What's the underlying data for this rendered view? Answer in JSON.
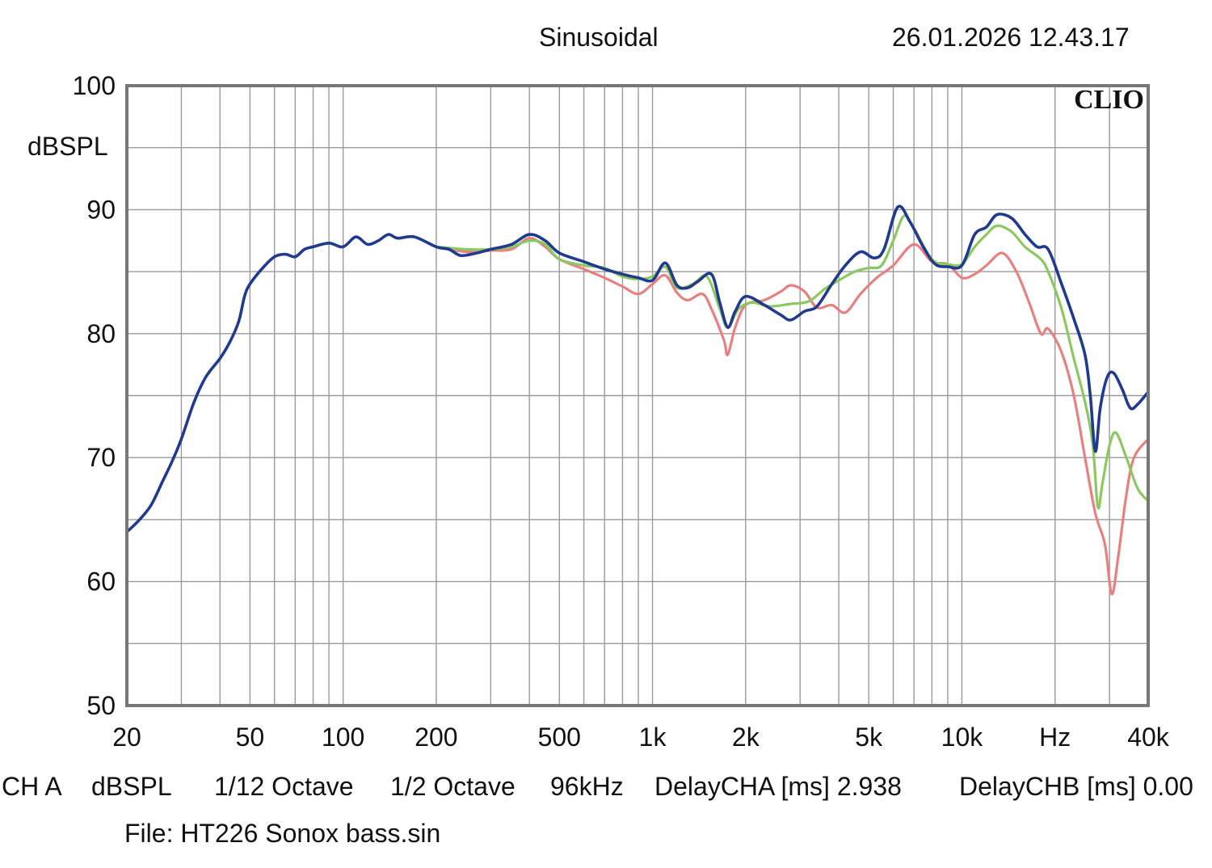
{
  "header": {
    "mode": "Sinusoidal",
    "datetime": "26.01.2026 12.43.17"
  },
  "logo": "CLIO",
  "footer": {
    "channel": "CH A",
    "unit": "dBSPL",
    "smoothing": "1/12 Octave",
    "smoothing2": "1/2 Octave",
    "rate": "96kHz",
    "delay_cha": "DelayCHA [ms] 2.938",
    "delay_chb": "DelayCHB [ms] 0.00",
    "file": "File: HT226 Sonox bass.sin"
  },
  "chart_data": {
    "type": "line",
    "title": "Sinusoidal",
    "xlabel": "Hz",
    "ylabel": "dBSPL",
    "xscale": "log",
    "xlim": [
      20,
      40000
    ],
    "ylim": [
      50,
      100
    ],
    "grid": true,
    "yticks": [
      50,
      60,
      70,
      80,
      90,
      100
    ],
    "ytick_labels": [
      "50",
      "60",
      "70",
      "80",
      "90",
      "100"
    ],
    "xticks": [
      20,
      50,
      100,
      200,
      500,
      1000,
      2000,
      5000,
      10000,
      20000,
      40000
    ],
    "xtick_labels": [
      "20",
      "50",
      "100",
      "200",
      "500",
      "1k",
      "2k",
      "5k",
      "10k",
      "Hz",
      "40k"
    ],
    "series": [
      {
        "name": "red",
        "color": "#e88080",
        "points": [
          [
            200,
            87.0
          ],
          [
            250,
            86.6
          ],
          [
            300,
            86.7
          ],
          [
            350,
            86.8
          ],
          [
            400,
            87.7
          ],
          [
            450,
            87.0
          ],
          [
            500,
            86.0
          ],
          [
            600,
            85.2
          ],
          [
            700,
            84.5
          ],
          [
            800,
            83.8
          ],
          [
            900,
            83.2
          ],
          [
            1000,
            84.0
          ],
          [
            1100,
            84.7
          ],
          [
            1200,
            83.3
          ],
          [
            1300,
            82.7
          ],
          [
            1450,
            83.2
          ],
          [
            1550,
            82.0
          ],
          [
            1700,
            79.5
          ],
          [
            1750,
            78.3
          ],
          [
            1850,
            80.5
          ],
          [
            2000,
            82.3
          ],
          [
            2300,
            82.7
          ],
          [
            2600,
            83.4
          ],
          [
            2800,
            83.9
          ],
          [
            3100,
            83.4
          ],
          [
            3400,
            82.1
          ],
          [
            3800,
            82.3
          ],
          [
            4200,
            81.7
          ],
          [
            4700,
            83.2
          ],
          [
            5300,
            84.5
          ],
          [
            6000,
            85.5
          ],
          [
            7000,
            87.2
          ],
          [
            8000,
            85.8
          ],
          [
            9000,
            85.6
          ],
          [
            10000,
            84.5
          ],
          [
            11000,
            84.8
          ],
          [
            12000,
            85.5
          ],
          [
            13500,
            86.5
          ],
          [
            15000,
            85.0
          ],
          [
            16500,
            82.5
          ],
          [
            18000,
            80.0
          ],
          [
            19000,
            80.4
          ],
          [
            21000,
            78.5
          ],
          [
            23000,
            75.0
          ],
          [
            25000,
            70.0
          ],
          [
            27000,
            65.5
          ],
          [
            29000,
            63.0
          ],
          [
            30500,
            59.0
          ],
          [
            32000,
            62.0
          ],
          [
            34000,
            67.0
          ],
          [
            36000,
            70.0
          ],
          [
            40000,
            71.5
          ]
        ]
      },
      {
        "name": "green",
        "color": "#8cc860",
        "points": [
          [
            200,
            87.0
          ],
          [
            250,
            86.8
          ],
          [
            300,
            86.8
          ],
          [
            350,
            87.0
          ],
          [
            400,
            87.5
          ],
          [
            450,
            87.2
          ],
          [
            500,
            86.0
          ],
          [
            600,
            85.5
          ],
          [
            700,
            85.3
          ],
          [
            800,
            84.6
          ],
          [
            900,
            84.4
          ],
          [
            1000,
            84.6
          ],
          [
            1100,
            85.4
          ],
          [
            1200,
            83.7
          ],
          [
            1350,
            84.0
          ],
          [
            1500,
            84.6
          ],
          [
            1650,
            82.0
          ],
          [
            1750,
            80.5
          ],
          [
            1900,
            82.0
          ],
          [
            2100,
            82.5
          ],
          [
            2400,
            82.2
          ],
          [
            2800,
            82.4
          ],
          [
            3200,
            82.6
          ],
          [
            3600,
            83.6
          ],
          [
            4000,
            84.3
          ],
          [
            4500,
            85.0
          ],
          [
            5000,
            85.3
          ],
          [
            5500,
            85.5
          ],
          [
            6000,
            87.5
          ],
          [
            6500,
            89.5
          ],
          [
            7000,
            88.5
          ],
          [
            8000,
            86.0
          ],
          [
            9000,
            85.6
          ],
          [
            10000,
            85.6
          ],
          [
            11000,
            87.0
          ],
          [
            12000,
            88.0
          ],
          [
            13000,
            88.7
          ],
          [
            14500,
            88.2
          ],
          [
            16000,
            87.0
          ],
          [
            18000,
            86.0
          ],
          [
            19000,
            85.0
          ],
          [
            21000,
            82.0
          ],
          [
            23000,
            78.0
          ],
          [
            25000,
            74.5
          ],
          [
            26500,
            71.0
          ],
          [
            27500,
            66.0
          ],
          [
            28500,
            68.0
          ],
          [
            30000,
            71.0
          ],
          [
            31500,
            72.0
          ],
          [
            34000,
            70.0
          ],
          [
            37000,
            67.5
          ],
          [
            40000,
            66.5
          ]
        ]
      },
      {
        "name": "blue",
        "color": "#1f3a8f",
        "points": [
          [
            20,
            64.0
          ],
          [
            22,
            65.0
          ],
          [
            24,
            66.2
          ],
          [
            26,
            68.0
          ],
          [
            28,
            69.7
          ],
          [
            30,
            71.5
          ],
          [
            33,
            74.5
          ],
          [
            36,
            76.5
          ],
          [
            40,
            78.0
          ],
          [
            43,
            79.3
          ],
          [
            46,
            81.0
          ],
          [
            48,
            83.0
          ],
          [
            50,
            84.0
          ],
          [
            55,
            85.3
          ],
          [
            60,
            86.2
          ],
          [
            65,
            86.4
          ],
          [
            70,
            86.2
          ],
          [
            75,
            86.8
          ],
          [
            80,
            87.0
          ],
          [
            90,
            87.3
          ],
          [
            100,
            87.0
          ],
          [
            110,
            87.8
          ],
          [
            120,
            87.2
          ],
          [
            130,
            87.5
          ],
          [
            140,
            88.0
          ],
          [
            150,
            87.7
          ],
          [
            170,
            87.8
          ],
          [
            200,
            87.0
          ],
          [
            220,
            86.8
          ],
          [
            240,
            86.3
          ],
          [
            270,
            86.5
          ],
          [
            300,
            86.8
          ],
          [
            350,
            87.2
          ],
          [
            400,
            88.0
          ],
          [
            450,
            87.5
          ],
          [
            500,
            86.5
          ],
          [
            600,
            85.8
          ],
          [
            700,
            85.2
          ],
          [
            800,
            84.8
          ],
          [
            900,
            84.5
          ],
          [
            1000,
            84.3
          ],
          [
            1100,
            85.7
          ],
          [
            1200,
            83.9
          ],
          [
            1300,
            83.7
          ],
          [
            1400,
            84.2
          ],
          [
            1550,
            84.8
          ],
          [
            1650,
            82.5
          ],
          [
            1750,
            80.5
          ],
          [
            1850,
            81.8
          ],
          [
            2000,
            83.0
          ],
          [
            2300,
            82.3
          ],
          [
            2600,
            81.5
          ],
          [
            2800,
            81.1
          ],
          [
            3100,
            81.8
          ],
          [
            3400,
            82.2
          ],
          [
            3800,
            84.0
          ],
          [
            4200,
            85.5
          ],
          [
            4700,
            86.6
          ],
          [
            5200,
            86.1
          ],
          [
            5600,
            86.8
          ],
          [
            6200,
            90.2
          ],
          [
            6800,
            89.0
          ],
          [
            7500,
            87.0
          ],
          [
            8200,
            85.6
          ],
          [
            9000,
            85.4
          ],
          [
            10000,
            85.5
          ],
          [
            11000,
            88.0
          ],
          [
            12000,
            88.6
          ],
          [
            13000,
            89.6
          ],
          [
            14500,
            89.3
          ],
          [
            16000,
            88.0
          ],
          [
            17500,
            87.0
          ],
          [
            19000,
            86.8
          ],
          [
            21000,
            84.0
          ],
          [
            23000,
            81.2
          ],
          [
            25000,
            78.3
          ],
          [
            26000,
            75.0
          ],
          [
            27000,
            70.5
          ],
          [
            28000,
            74.0
          ],
          [
            29500,
            76.5
          ],
          [
            31000,
            76.8
          ],
          [
            33000,
            75.5
          ],
          [
            35000,
            74.0
          ],
          [
            37000,
            74.3
          ],
          [
            40000,
            75.3
          ]
        ]
      }
    ]
  }
}
